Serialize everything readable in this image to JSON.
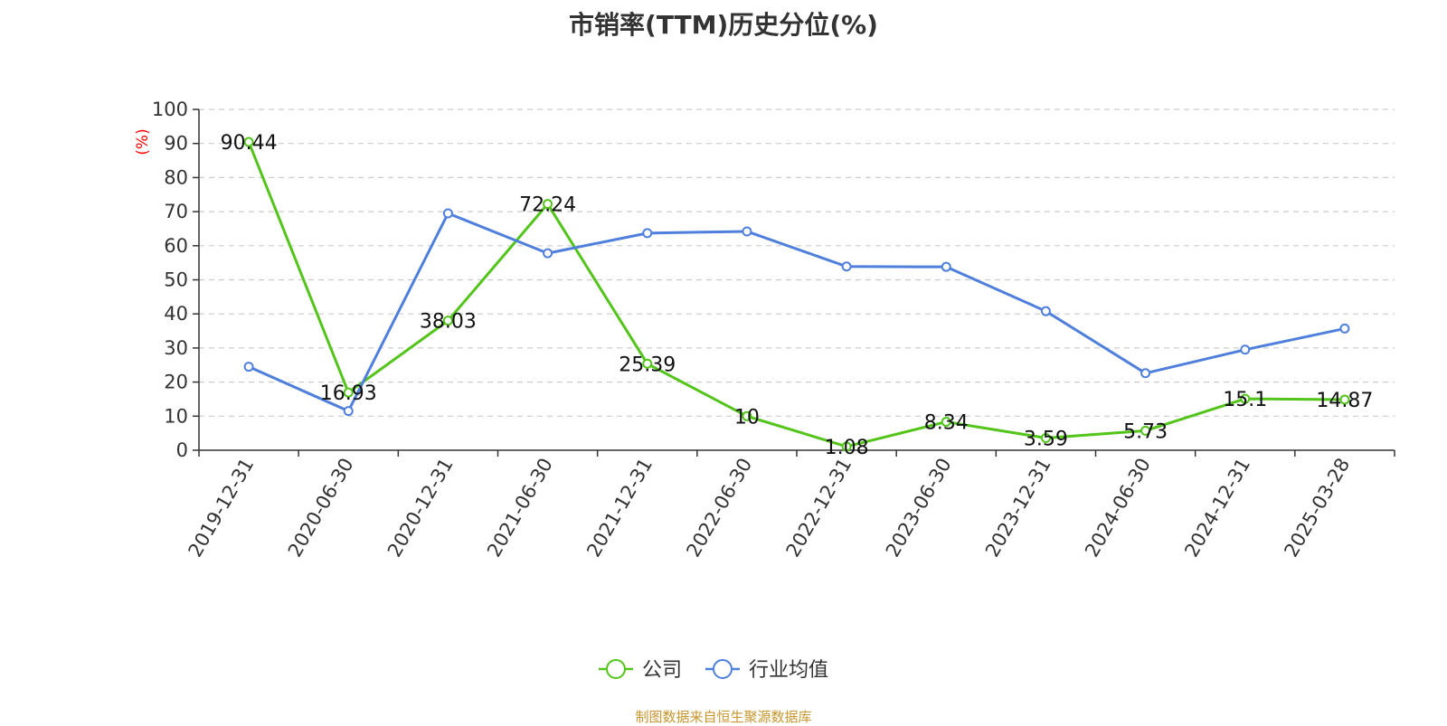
{
  "chart_data": {
    "type": "line",
    "title": "市销率(TTM)历史分位(%)",
    "ylabel": "(%)",
    "xlabel": "",
    "categories": [
      "2019-12-31",
      "2020-06-30",
      "2020-12-31",
      "2021-06-30",
      "2021-12-31",
      "2022-06-30",
      "2022-12-31",
      "2023-06-30",
      "2023-12-31",
      "2024-06-30",
      "2024-12-31",
      "2025-03-28"
    ],
    "ylim": [
      0,
      100
    ],
    "yticks": [
      0,
      10,
      20,
      30,
      40,
      50,
      60,
      70,
      80,
      90,
      100
    ],
    "grid": true,
    "legend_position": "bottom-center",
    "series": [
      {
        "name": "公司",
        "color": "#52c41a",
        "values": [
          90.44,
          16.93,
          38.03,
          72.24,
          25.39,
          10,
          1.08,
          8.34,
          3.59,
          5.73,
          15.1,
          14.87
        ],
        "labels": [
          "90.44",
          "16.93",
          "38.03",
          "72.24",
          "25.39",
          "10",
          "1.08",
          "8.34",
          "3.59",
          "5.73",
          "15.1",
          "14.87"
        ]
      },
      {
        "name": "行业均值",
        "color": "#4f7fdc",
        "values": [
          24.5,
          11.5,
          69.5,
          57.8,
          63.7,
          64.2,
          53.9,
          53.8,
          40.8,
          22.6,
          29.5,
          35.7
        ]
      }
    ]
  },
  "source_note": "制图数据来自恒生聚源数据库"
}
